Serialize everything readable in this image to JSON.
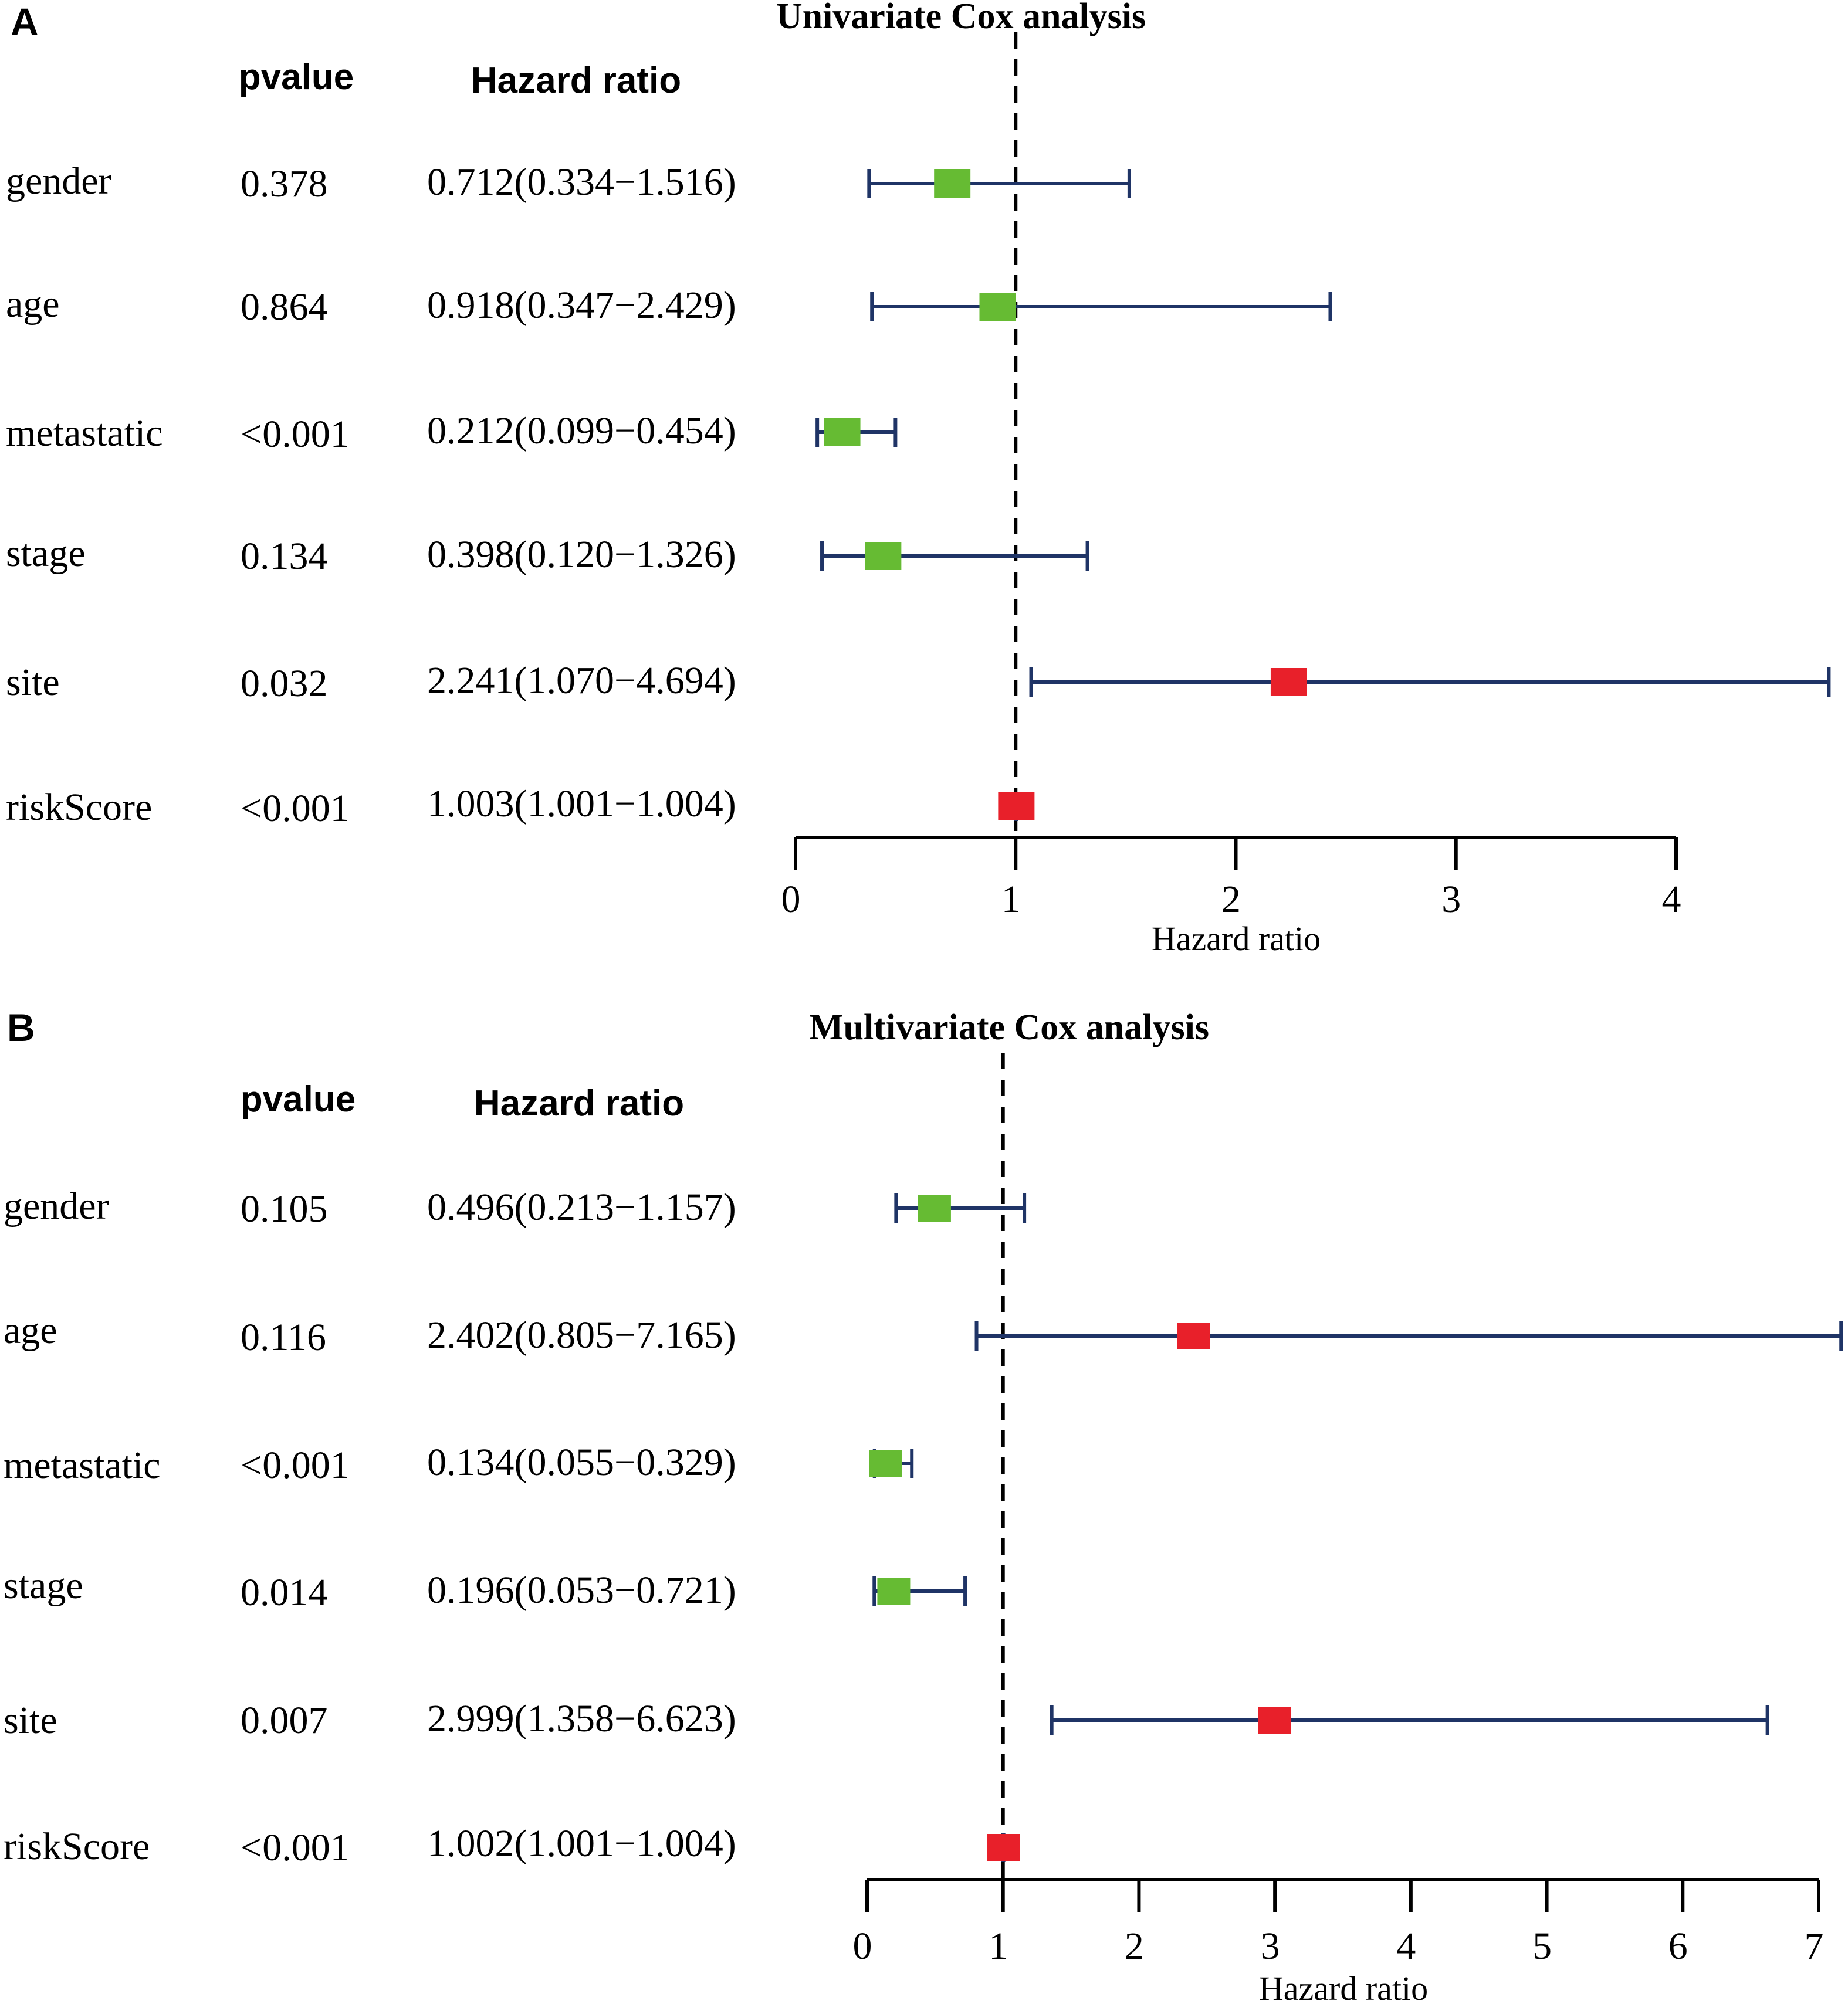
{
  "panels": [
    {
      "panel_label": "A",
      "title": "Univariate Cox analysis",
      "pvalue_header": "pvalue",
      "hr_header": "Hazard ratio",
      "xlabel": "Hazard ratio",
      "xlim": [
        0,
        4
      ],
      "ticks": [
        "0",
        "1",
        "2",
        "3",
        "4"
      ],
      "rows": [
        {
          "name": "gender",
          "pvalue": "0.378",
          "hr_text": "0.712(0.334−1.516)"
        },
        {
          "name": "age",
          "pvalue": "0.864",
          "hr_text": "0.918(0.347−2.429)"
        },
        {
          "name": "metastatic",
          "pvalue": "<0.001",
          "hr_text": "0.212(0.099−0.454)"
        },
        {
          "name": "stage",
          "pvalue": "0.134",
          "hr_text": "0.398(0.120−1.326)"
        },
        {
          "name": "site",
          "pvalue": "0.032",
          "hr_text": "2.241(1.070−4.694)"
        },
        {
          "name": "riskScore",
          "pvalue": "<0.001",
          "hr_text": "1.003(1.001−1.004)"
        }
      ]
    },
    {
      "panel_label": "B",
      "title": "Multivariate Cox analysis",
      "pvalue_header": "pvalue",
      "hr_header": "Hazard ratio",
      "xlabel": "Hazard ratio",
      "xlim": [
        0,
        7
      ],
      "ticks": [
        "0",
        "1",
        "2",
        "3",
        "4",
        "5",
        "6",
        "7"
      ],
      "rows": [
        {
          "name": "gender",
          "pvalue": "0.105",
          "hr_text": "0.496(0.213−1.157)"
        },
        {
          "name": "age",
          "pvalue": "0.116",
          "hr_text": "2.402(0.805−7.165)"
        },
        {
          "name": "metastatic",
          "pvalue": "<0.001",
          "hr_text": "0.134(0.055−0.329)"
        },
        {
          "name": "stage",
          "pvalue": "0.014",
          "hr_text": "0.196(0.053−0.721)"
        },
        {
          "name": "site",
          "pvalue": "0.007",
          "hr_text": "2.999(1.358−6.623)"
        },
        {
          "name": "riskScore",
          "pvalue": "<0.001",
          "hr_text": "1.002(1.001−1.004)"
        }
      ]
    }
  ],
  "chart_data": [
    {
      "type": "forest",
      "title": "Univariate Cox analysis",
      "xlabel": "Hazard ratio",
      "xlim": [
        0,
        4
      ],
      "reference_line": 1,
      "categories": [
        "gender",
        "age",
        "metastatic",
        "stage",
        "site",
        "riskScore"
      ],
      "hr": [
        0.712,
        0.918,
        0.212,
        0.398,
        2.241,
        1.003
      ],
      "ci_low": [
        0.334,
        0.347,
        0.099,
        0.12,
        1.07,
        1.001
      ],
      "ci_high": [
        1.516,
        2.429,
        0.454,
        1.326,
        4.694,
        1.004
      ],
      "pvalues": [
        "0.378",
        "0.864",
        "<0.001",
        "0.134",
        "0.032",
        "<0.001"
      ]
    },
    {
      "type": "forest",
      "title": "Multivariate Cox analysis",
      "xlabel": "Hazard ratio",
      "xlim": [
        0,
        7
      ],
      "reference_line": 1,
      "categories": [
        "gender",
        "age",
        "metastatic",
        "stage",
        "site",
        "riskScore"
      ],
      "hr": [
        0.496,
        2.402,
        0.134,
        0.196,
        2.999,
        1.002
      ],
      "ci_low": [
        0.213,
        0.805,
        0.055,
        0.053,
        1.358,
        1.001
      ],
      "ci_high": [
        1.157,
        7.165,
        0.329,
        0.721,
        6.623,
        1.004
      ],
      "pvalues": [
        "0.105",
        "0.116",
        "<0.001",
        "0.014",
        "0.007",
        "<0.001"
      ]
    }
  ],
  "colors": {
    "protective": "#66bb33",
    "risk": "#e8202a",
    "ci_line": "#1f3466",
    "axis": "#000000"
  }
}
